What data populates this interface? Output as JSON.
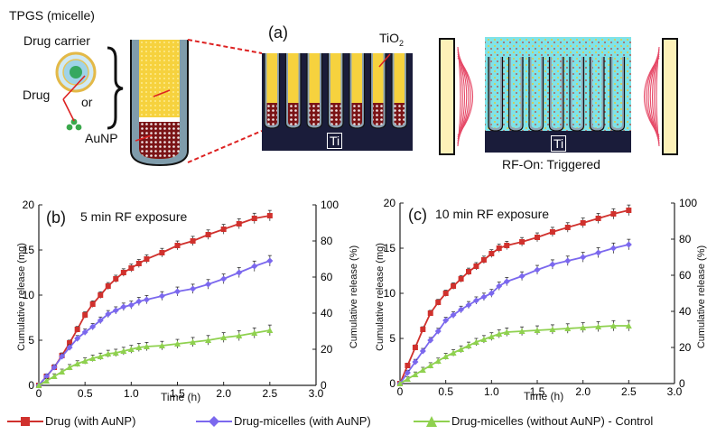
{
  "figure": {
    "panel_a": {
      "label": "(a)",
      "micelle_title": "TPGS (micelle)",
      "drug_carrier": "Drug carrier",
      "drug": "Drug",
      "or": "or",
      "aunp": "AuNP",
      "tio2": "TiO",
      "tio2_sub": "2",
      "ti": "Ti",
      "ti_right": "Ti",
      "rf_on": "RF-On: Triggered"
    },
    "legend": [
      {
        "label": "Drug (with AuNP)",
        "color": "#d0312d",
        "marker": "square"
      },
      {
        "label": "Drug-micelles (with AuNP)",
        "color": "#7b68ee",
        "marker": "diamond"
      },
      {
        "label": "Drug-micelles (without AuNP) - Control",
        "color": "#8fd14f",
        "marker": "triangle"
      }
    ]
  },
  "chart_data": [
    {
      "type": "line",
      "panel": "(b)",
      "title": "5 min RF exposure",
      "xlabel": "Time (h)",
      "ylabel": "Cumulative release (mg)",
      "ylabel_right": "Cumulative release (%)",
      "xlim": [
        0,
        3.0
      ],
      "ylim": [
        0,
        20
      ],
      "ylim_right": [
        0,
        100
      ],
      "xticks": [
        "0",
        "0.5",
        "1.0",
        "1.5",
        "2.0",
        "2.5",
        "3.0"
      ],
      "yticks": [
        "0",
        "5",
        "10",
        "15",
        "20"
      ],
      "yticks_right": [
        "0",
        "20",
        "40",
        "60",
        "80",
        "100"
      ],
      "series": [
        {
          "name": "Drug (with AuNP)",
          "color": "#d0312d",
          "marker": "square",
          "x": [
            0,
            0.083,
            0.167,
            0.25,
            0.333,
            0.417,
            0.5,
            0.583,
            0.667,
            0.75,
            0.833,
            0.917,
            1.0,
            1.083,
            1.167,
            1.333,
            1.5,
            1.667,
            1.833,
            2.0,
            2.167,
            2.333,
            2.5
          ],
          "y": [
            0,
            1.0,
            2.0,
            3.3,
            4.7,
            6.2,
            7.8,
            9.0,
            10.0,
            11.0,
            11.8,
            12.5,
            13.0,
            13.5,
            14.0,
            14.7,
            15.5,
            16.0,
            16.7,
            17.3,
            17.9,
            18.5,
            18.8
          ]
        },
        {
          "name": "Drug-micelles (with AuNP)",
          "color": "#7b68ee",
          "marker": "diamond",
          "x": [
            0,
            0.083,
            0.167,
            0.25,
            0.333,
            0.417,
            0.5,
            0.583,
            0.667,
            0.75,
            0.833,
            0.917,
            1.0,
            1.083,
            1.167,
            1.333,
            1.5,
            1.667,
            1.833,
            2.0,
            2.167,
            2.333,
            2.5
          ],
          "y": [
            0,
            1.0,
            2.0,
            3.2,
            4.2,
            5.2,
            5.9,
            6.5,
            7.2,
            7.9,
            8.3,
            8.7,
            8.9,
            9.3,
            9.5,
            9.9,
            10.4,
            10.7,
            11.2,
            11.8,
            12.5,
            13.2,
            13.8
          ]
        },
        {
          "name": "Drug-micelles (without AuNP) - Control",
          "color": "#8fd14f",
          "marker": "triangle",
          "x": [
            0,
            0.083,
            0.167,
            0.25,
            0.333,
            0.417,
            0.5,
            0.583,
            0.667,
            0.75,
            0.833,
            0.917,
            1.0,
            1.083,
            1.167,
            1.333,
            1.5,
            1.667,
            1.833,
            2.0,
            2.167,
            2.333,
            2.5
          ],
          "y": [
            0,
            0.5,
            1.0,
            1.5,
            2.0,
            2.4,
            2.7,
            3.0,
            3.2,
            3.5,
            3.6,
            3.8,
            4.0,
            4.2,
            4.3,
            4.4,
            4.6,
            4.8,
            5.0,
            5.3,
            5.5,
            5.8,
            6.1
          ]
        }
      ]
    },
    {
      "type": "line",
      "panel": "(c)",
      "title": "10 min RF exposure",
      "xlabel": "Time (h)",
      "ylabel": "Cumulative release (mg)",
      "ylabel_right": "Cumulative release (%)",
      "xlim": [
        0,
        3.0
      ],
      "ylim": [
        0,
        20
      ],
      "ylim_right": [
        0,
        100
      ],
      "xticks": [
        "0",
        "0.5",
        "1.0",
        "1.5",
        "2.0",
        "2.5",
        "3.0"
      ],
      "yticks": [
        "0",
        "5",
        "10",
        "15",
        "20"
      ],
      "yticks_right": [
        "0",
        "20",
        "40",
        "60",
        "80",
        "100"
      ],
      "series": [
        {
          "name": "Drug (with AuNP)",
          "color": "#d0312d",
          "marker": "square",
          "x": [
            0,
            0.083,
            0.167,
            0.25,
            0.333,
            0.417,
            0.5,
            0.583,
            0.667,
            0.75,
            0.833,
            0.917,
            1.0,
            1.083,
            1.167,
            1.333,
            1.5,
            1.667,
            1.833,
            2.0,
            2.167,
            2.333,
            2.5
          ],
          "y": [
            0,
            2.0,
            4.0,
            6.0,
            7.8,
            9.0,
            10.0,
            10.8,
            11.6,
            12.4,
            13.0,
            13.7,
            14.4,
            15.0,
            15.3,
            15.7,
            16.2,
            16.8,
            17.3,
            17.8,
            18.3,
            18.8,
            19.2
          ]
        },
        {
          "name": "Drug-micelles (with AuNP)",
          "color": "#7b68ee",
          "marker": "diamond",
          "x": [
            0,
            0.083,
            0.167,
            0.25,
            0.333,
            0.417,
            0.5,
            0.583,
            0.667,
            0.75,
            0.833,
            0.917,
            1.0,
            1.083,
            1.167,
            1.333,
            1.5,
            1.667,
            1.833,
            2.0,
            2.167,
            2.333,
            2.5
          ],
          "y": [
            0,
            1.2,
            2.4,
            3.6,
            4.8,
            5.8,
            7.0,
            7.6,
            8.2,
            8.7,
            9.2,
            9.6,
            10.0,
            10.8,
            11.3,
            11.9,
            12.6,
            13.2,
            13.6,
            14.0,
            14.5,
            15.0,
            15.4
          ]
        },
        {
          "name": "Drug-micelles (without AuNP) - Control",
          "color": "#8fd14f",
          "marker": "triangle",
          "x": [
            0,
            0.083,
            0.167,
            0.25,
            0.333,
            0.417,
            0.5,
            0.583,
            0.667,
            0.75,
            0.833,
            0.917,
            1.0,
            1.083,
            1.167,
            1.333,
            1.5,
            1.667,
            1.833,
            2.0,
            2.167,
            2.333,
            2.5
          ],
          "y": [
            0,
            0.5,
            1.0,
            1.5,
            2.0,
            2.5,
            3.0,
            3.4,
            3.8,
            4.2,
            4.6,
            4.9,
            5.2,
            5.5,
            5.7,
            5.8,
            5.9,
            6.0,
            6.1,
            6.2,
            6.3,
            6.4,
            6.4
          ]
        }
      ]
    }
  ]
}
